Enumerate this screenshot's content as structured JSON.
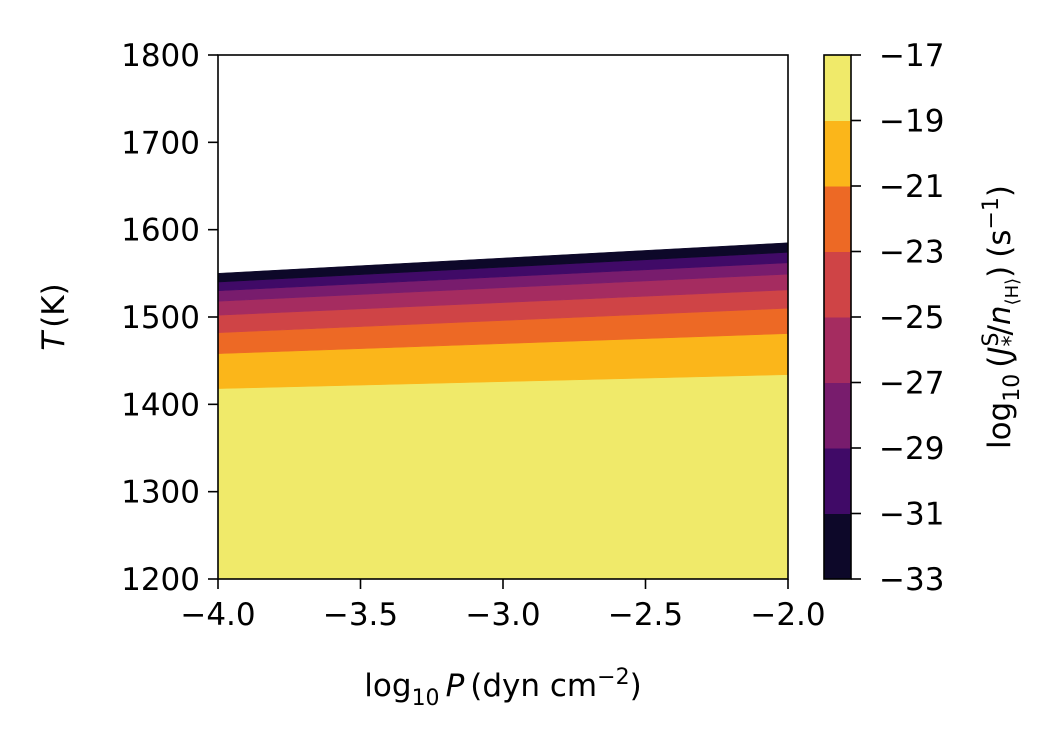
{
  "chart_data": {
    "type": "heatmap",
    "subtype": "filled-contour",
    "title": "",
    "xlabel": {
      "main": "log",
      "sub": "10",
      "var": "P",
      "unit_open": "(dyn cm",
      "unit_sup": "−2",
      "unit_close": ")"
    },
    "ylabel": {
      "var": "T",
      "unit": "(K)"
    },
    "colorbar_label": {
      "main": "log",
      "sub": "10",
      "open": "(",
      "var": "J",
      "var_sup": "S",
      "var_sub": "*",
      "slash": "/",
      "den": "n",
      "den_sub": "⟨H⟩",
      "close": ")",
      "unit_open": "(s",
      "unit_sup": "−1",
      "unit_close": ")"
    },
    "xlim": [
      -4.0,
      -2.0
    ],
    "ylim": [
      1200,
      1800
    ],
    "xticks": [
      -4.0,
      -3.5,
      -3.0,
      -2.5,
      -2.0
    ],
    "xtick_labels": [
      "−4.0",
      "−3.5",
      "−3.0",
      "−2.5",
      "−2.0"
    ],
    "yticks": [
      1200,
      1300,
      1400,
      1500,
      1600,
      1700,
      1800
    ],
    "ytick_labels": [
      "1200",
      "1300",
      "1400",
      "1500",
      "1600",
      "1700",
      "1800"
    ],
    "colorbar": {
      "range": [
        -33,
        -17
      ],
      "ticks": [
        -33,
        -31,
        -29,
        -27,
        -25,
        -23,
        -21,
        -19,
        -17
      ],
      "tick_labels": [
        "−33",
        "−31",
        "−29",
        "−27",
        "−25",
        "−23",
        "−21",
        "−19",
        "−17"
      ],
      "colors": [
        "#0d0829",
        "#400a67",
        "#781c6d",
        "#a52c60",
        "#cf4446",
        "#ed6925",
        "#fbb61a",
        "#f0ea6a"
      ]
    },
    "contour_boundaries": [
      {
        "level": -19,
        "T_at_xmin": 1418,
        "T_at_xmax": 1434
      },
      {
        "level": -21,
        "T_at_xmin": 1458,
        "T_at_xmax": 1481
      },
      {
        "level": -23,
        "T_at_xmin": 1482,
        "T_at_xmax": 1510
      },
      {
        "level": -25,
        "T_at_xmin": 1502,
        "T_at_xmax": 1531
      },
      {
        "level": -27,
        "T_at_xmin": 1518,
        "T_at_xmax": 1549
      },
      {
        "level": -29,
        "T_at_xmin": 1530,
        "T_at_xmax": 1562
      },
      {
        "level": -31,
        "T_at_xmin": 1540,
        "T_at_xmax": 1574
      },
      {
        "level": -33,
        "T_at_xmin": 1550,
        "T_at_xmax": 1585
      }
    ],
    "grid": false,
    "legend": "none"
  }
}
